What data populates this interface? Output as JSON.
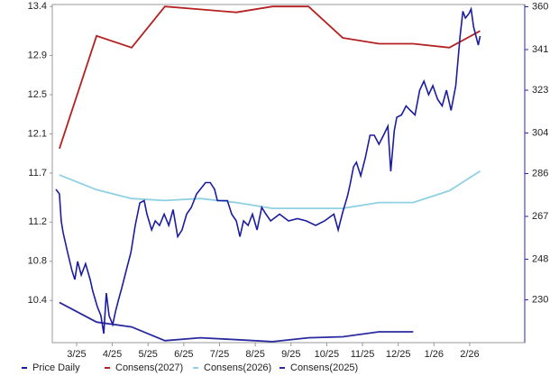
{
  "chart_data": {
    "type": "line",
    "xlim": [
      2.32,
      15.54
    ],
    "xticks": [
      {
        "value": 3,
        "label": "3/25"
      },
      {
        "value": 4,
        "label": "4/25"
      },
      {
        "value": 5,
        "label": "5/25"
      },
      {
        "value": 6,
        "label": "6/25"
      },
      {
        "value": 7,
        "label": "7/25"
      },
      {
        "value": 8,
        "label": "8/25"
      },
      {
        "value": 9,
        "label": "9/25"
      },
      {
        "value": 10,
        "label": "10/25"
      },
      {
        "value": 11,
        "label": "11/25"
      },
      {
        "value": 12,
        "label": "12/25"
      },
      {
        "value": 13,
        "label": "1/26"
      },
      {
        "value": 14,
        "label": "2/26"
      }
    ],
    "ylim": [
      9.97,
      13.42
    ],
    "yticks": [
      10.4,
      10.8,
      11.2,
      11.7,
      12.1,
      12.5,
      12.9,
      13.4
    ],
    "y2lim": [
      211,
      361
    ],
    "y2ticks": [
      230,
      248,
      267,
      286,
      304,
      323,
      341,
      360
    ],
    "grid": false,
    "legend": "bottom",
    "series": [
      {
        "name": "Price Daily",
        "color": "#1c1ca0",
        "axis": "y2",
        "x": [
          2.42,
          2.52,
          2.57,
          2.62,
          2.75,
          2.87,
          2.95,
          3.03,
          3.13,
          3.25,
          3.38,
          3.45,
          3.58,
          3.68,
          3.76,
          3.83,
          3.91,
          4.01,
          4.09,
          4.19,
          4.26,
          4.39,
          4.52,
          4.64,
          4.77,
          4.89,
          4.97,
          5.1,
          5.2,
          5.32,
          5.45,
          5.58,
          5.7,
          5.83,
          5.95,
          6.08,
          6.21,
          6.36,
          6.46,
          6.61,
          6.74,
          6.86,
          6.94,
          7.07,
          7.22,
          7.34,
          7.47,
          7.57,
          7.67,
          7.8,
          7.92,
          8.05,
          8.18,
          8.3,
          8.43,
          8.68,
          8.93,
          9.18,
          9.43,
          9.69,
          9.94,
          10.2,
          10.32,
          10.45,
          10.58,
          10.65,
          10.75,
          10.83,
          10.95,
          11.08,
          11.21,
          11.33,
          11.46,
          11.59,
          11.71,
          11.79,
          11.89,
          11.96,
          12.09,
          12.22,
          12.34,
          12.47,
          12.6,
          12.72,
          12.85,
          12.97,
          13.1,
          13.23,
          13.35,
          13.48,
          13.61,
          13.73,
          13.81,
          13.88,
          13.98,
          14.04,
          14.11,
          14.24,
          14.29
        ],
        "values": [
          279,
          277,
          265,
          260,
          251,
          243,
          239,
          247,
          241,
          246,
          239,
          234,
          227,
          223,
          215,
          233,
          223,
          219,
          225,
          231,
          235,
          243,
          251,
          263,
          273,
          274,
          268,
          261,
          265,
          263,
          268,
          263,
          270,
          258,
          261,
          268,
          271,
          277,
          279,
          282,
          282,
          279,
          274,
          274,
          274,
          268,
          265,
          258,
          265,
          263,
          268,
          261,
          271,
          268,
          265,
          268,
          265,
          266,
          265,
          263,
          265,
          268,
          261,
          269,
          276,
          281,
          289,
          291,
          285,
          293,
          303,
          303,
          299,
          303,
          307,
          287,
          305,
          311,
          312,
          316,
          314,
          312,
          323,
          327,
          321,
          325,
          319,
          316,
          323,
          314,
          325,
          347,
          358,
          355,
          357,
          359,
          351,
          343,
          347
        ]
      },
      {
        "name": "Consens(2027)",
        "color": "#b52020",
        "x": [
          2.52,
          3.56,
          4.54,
          5.47,
          6.46,
          7.47,
          8.48,
          9.49,
          10.45,
          11.46,
          12.42,
          13.43,
          14.29
        ],
        "values": [
          11.95,
          13.1,
          12.98,
          13.4,
          13.37,
          13.34,
          13.4,
          13.4,
          13.08,
          13.02,
          13.02,
          12.98,
          13.15
        ]
      },
      {
        "name": "Consens(2026)",
        "color": "#8fd0e2",
        "x": [
          2.52,
          3.56,
          4.54,
          5.47,
          6.46,
          7.47,
          8.48,
          9.49,
          10.45,
          11.46,
          12.42,
          13.43,
          14.29
        ],
        "values": [
          11.68,
          11.53,
          11.44,
          11.42,
          11.44,
          11.4,
          11.34,
          11.34,
          11.34,
          11.4,
          11.4,
          11.52,
          11.72
        ]
      },
      {
        "name": "Consens(2025)",
        "color": "#2a2a9e",
        "x": [
          2.52,
          3.56,
          4.54,
          5.47,
          6.46,
          7.47,
          8.48,
          9.49,
          10.45,
          11.46,
          12.42
        ],
        "values": [
          10.38,
          10.18,
          10.13,
          9.99,
          10.02,
          10.0,
          9.98,
          10.02,
          10.03,
          10.08,
          10.08
        ]
      }
    ]
  }
}
